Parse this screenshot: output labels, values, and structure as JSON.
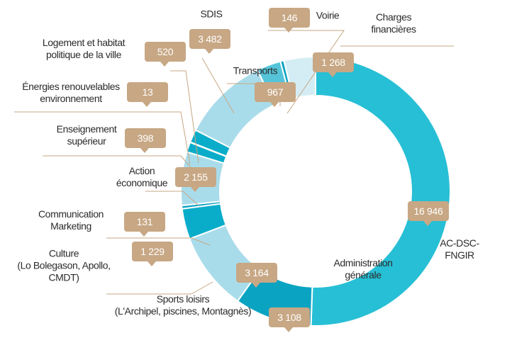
{
  "chart_data": {
    "type": "donut",
    "categories": [
      "AC-DSC-FNGIR",
      "Administration\ngénérale",
      "Sports loisirs\n(L'Archipel, piscines, Montagnès)",
      "Culture\n(Lo Bolegason, Apollo,\nCMDT)",
      "Communication\nMarketing",
      "Action\néconomique",
      "Enseignement\nsupérieur",
      "Énergies renouvelables\nenvironnement",
      "Logement et habitat\npolitique de la ville",
      "SDIS",
      "Transports",
      "Voirie",
      "Charges\nfinancières"
    ],
    "values": [
      16946,
      3108,
      3164,
      1229,
      131,
      2155,
      398,
      13,
      520,
      3482,
      967,
      146,
      1268
    ],
    "value_labels": [
      "16 946",
      "3 108",
      "3 164",
      "1 229",
      "131",
      "2 155",
      "398",
      "13",
      "520",
      "3 482",
      "967",
      "146",
      "1 268"
    ],
    "colors": [
      "#27bfd5",
      "#0aa3c2",
      "#a9dcea",
      "#0aadc9",
      "#0aa3c2",
      "#a9dcea",
      "#0aadc9",
      "#0aa3c2",
      "#0aadc9",
      "#a9dcea",
      "#55c4d8",
      "#0aa3c2",
      "#d4edf4"
    ]
  }
}
